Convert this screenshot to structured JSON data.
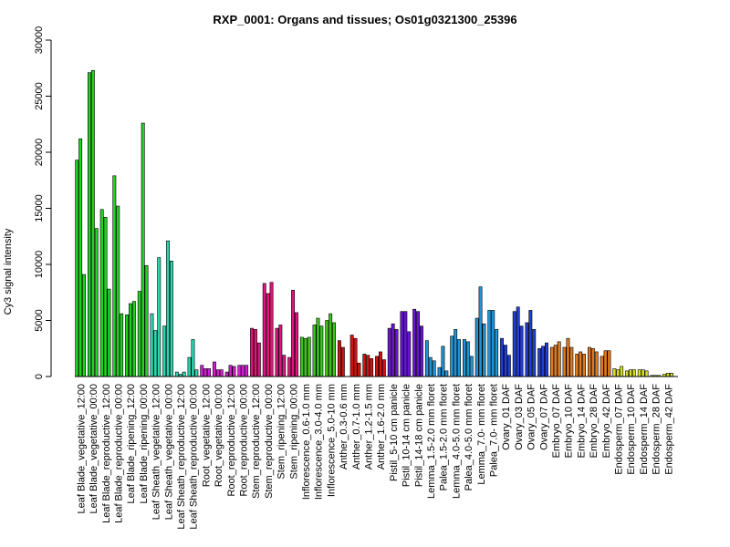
{
  "chart_data": {
    "type": "bar",
    "title": "RXP_0001: Organs and tissues; Os01g0321300_25396",
    "xlabel": "",
    "ylabel": "Cy3 signal intensity",
    "ylim": [
      0,
      30000
    ],
    "yticks": [
      0,
      5000,
      10000,
      15000,
      20000,
      25000,
      30000
    ],
    "grid": false,
    "legend": "none",
    "groups": [
      {
        "label": "Leaf Blade_vegetative_12:00",
        "color": "#1fd31f",
        "values": [
          19300,
          21200,
          9100
        ]
      },
      {
        "label": "Leaf Blade_vegetative_00:00",
        "color": "#1fd31f",
        "values": [
          27100,
          27300,
          13200
        ]
      },
      {
        "label": "Leaf Blade_reproductive_12:00",
        "color": "#1fd31f",
        "values": [
          14900,
          14200,
          7800
        ]
      },
      {
        "label": "Leaf Blade_reproductive_00:00",
        "color": "#1fd31f",
        "values": [
          17900,
          15200,
          5600
        ]
      },
      {
        "label": "Leaf Blade_ripening_12:00",
        "color": "#1fd31f",
        "values": [
          5500,
          6500,
          6700
        ]
      },
      {
        "label": "Leaf Blade_ripening_00:00",
        "color": "#1fd31f",
        "values": [
          7600,
          22600,
          9900
        ]
      },
      {
        "label": "Leaf Sheath_vegetative_12:00",
        "color": "#2ed6b0",
        "values": [
          5600,
          4100,
          10600
        ]
      },
      {
        "label": "Leaf Sheath_vegetative_00:00",
        "color": "#2ed6b0",
        "values": [
          4500,
          12100,
          10300
        ]
      },
      {
        "label": "Leaf Sheath_reproductive_12:00",
        "color": "#2ed6b0",
        "values": [
          400,
          200,
          400
        ]
      },
      {
        "label": "Leaf Sheath_reproductive_00:00",
        "color": "#2ed6b0",
        "values": [
          1700,
          3300,
          600
        ]
      },
      {
        "label": "Root_vegetative_12:00",
        "color": "#d21fd2",
        "values": [
          1000,
          700,
          700
        ]
      },
      {
        "label": "Root_vegetative_00:00",
        "color": "#d21fd2",
        "values": [
          1300,
          600,
          600
        ]
      },
      {
        "label": "Root_reproductive_12:00",
        "color": "#d21fd2",
        "values": [
          400,
          1000,
          900
        ]
      },
      {
        "label": "Root_reproductive_00:00",
        "color": "#d21fd2",
        "values": [
          1000,
          1000,
          1000
        ]
      },
      {
        "label": "Stem_reproductive_12:00",
        "color": "#e0157e",
        "values": [
          4300,
          4200,
          3000
        ]
      },
      {
        "label": "Stem_reproductive_00:00",
        "color": "#e0157e",
        "values": [
          8300,
          7400,
          8400
        ]
      },
      {
        "label": "Stem_ripening_12:00",
        "color": "#e0157e",
        "values": [
          4300,
          4600,
          1900
        ]
      },
      {
        "label": "Stem_ripening_00:00",
        "color": "#e0157e",
        "values": [
          1700,
          7700,
          5700
        ]
      },
      {
        "label": "Inflorescence_0.6-1.0 mm",
        "color": "#3ec41c",
        "values": [
          3500,
          3400,
          3500
        ]
      },
      {
        "label": "Inflorescence_3.0-4.0 mm",
        "color": "#3ec41c",
        "values": [
          4600,
          5200,
          4500
        ]
      },
      {
        "label": "Inflorescence_5.0-10 mm",
        "color": "#3ec41c",
        "values": [
          5000,
          5600,
          4800
        ]
      },
      {
        "label": "Anther_0.3-0.6 mm",
        "color": "#d11313",
        "values": [
          3200,
          2600,
          0
        ]
      },
      {
        "label": "Anther_0.7-1.0 mm",
        "color": "#d11313",
        "values": [
          3700,
          3400,
          1200
        ]
      },
      {
        "label": "Anther_1.2-1.5 mm",
        "color": "#d11313",
        "values": [
          2000,
          1900,
          1600
        ]
      },
      {
        "label": "Anther_1.6-2.0 mm",
        "color": "#d11313",
        "values": [
          1800,
          2200,
          1500
        ]
      },
      {
        "label": "Pistil_5-10 cm panicle",
        "color": "#6a14d6",
        "values": [
          4300,
          4700,
          4200
        ]
      },
      {
        "label": "Pistil_10-14 cm panicle",
        "color": "#6a14d6",
        "values": [
          5800,
          5800,
          4000
        ]
      },
      {
        "label": "Pistil_14-18 cm panicle",
        "color": "#6a14d6",
        "values": [
          6000,
          5800,
          4500
        ]
      },
      {
        "label": "Lemma_1.5-2.0 mm floret",
        "color": "#1f94d6",
        "values": [
          3200,
          1700,
          1400
        ]
      },
      {
        "label": "Palea_1.5-2.0 mm floret",
        "color": "#1f94d6",
        "values": [
          800,
          2700,
          500
        ]
      },
      {
        "label": "Lemma_4.0-5.0 mm floret",
        "color": "#1f94d6",
        "values": [
          3600,
          4200,
          3300
        ]
      },
      {
        "label": "Palea_4.0-5.0 mm floret",
        "color": "#1f94d6",
        "values": [
          3300,
          3100,
          1800
        ]
      },
      {
        "label": "Lemma_7.0- mm floret",
        "color": "#1f94d6",
        "values": [
          5200,
          8000,
          4700
        ]
      },
      {
        "label": "Palea_7.0- mm floret",
        "color": "#1f94d6",
        "values": [
          5900,
          5900,
          4200
        ]
      },
      {
        "label": "Ovary_01 DAF",
        "color": "#1f3fd6",
        "values": [
          3400,
          2800,
          1900
        ]
      },
      {
        "label": "Ovary_03 DAF",
        "color": "#1f3fd6",
        "values": [
          5800,
          6200,
          4500
        ]
      },
      {
        "label": "Ovary_05 DAF",
        "color": "#1f3fd6",
        "values": [
          4800,
          5900,
          4200
        ]
      },
      {
        "label": "Ovary_07 DAF",
        "color": "#1f3fd6",
        "values": [
          2500,
          2700,
          3000
        ]
      },
      {
        "label": "Embryo_07 DAF",
        "color": "#e07a1f",
        "values": [
          2600,
          2800,
          3100
        ]
      },
      {
        "label": "Embryo_10 DAF",
        "color": "#e07a1f",
        "values": [
          2600,
          3400,
          2600
        ]
      },
      {
        "label": "Embryo_14 DAF",
        "color": "#e07a1f",
        "values": [
          2000,
          2200,
          2000
        ]
      },
      {
        "label": "Embryo_28 DAF",
        "color": "#e07a1f",
        "values": [
          2600,
          2500,
          2200
        ]
      },
      {
        "label": "Embryo_42 DAF",
        "color": "#e07a1f",
        "values": [
          1800,
          2300,
          2300
        ]
      },
      {
        "label": "Endosperm_07 DAF",
        "color": "#d8e01f",
        "values": [
          700,
          600,
          900
        ]
      },
      {
        "label": "Endosperm_10 DAF",
        "color": "#d8e01f",
        "values": [
          500,
          600,
          600
        ]
      },
      {
        "label": "Endosperm_14 DAF",
        "color": "#d8e01f",
        "values": [
          600,
          600,
          500
        ]
      },
      {
        "label": "Endosperm_28 DAF",
        "color": "#d8e01f",
        "values": [
          100,
          100,
          100
        ]
      },
      {
        "label": "Endosperm_42 DAF",
        "color": "#d8e01f",
        "values": [
          200,
          300,
          300
        ]
      }
    ]
  }
}
